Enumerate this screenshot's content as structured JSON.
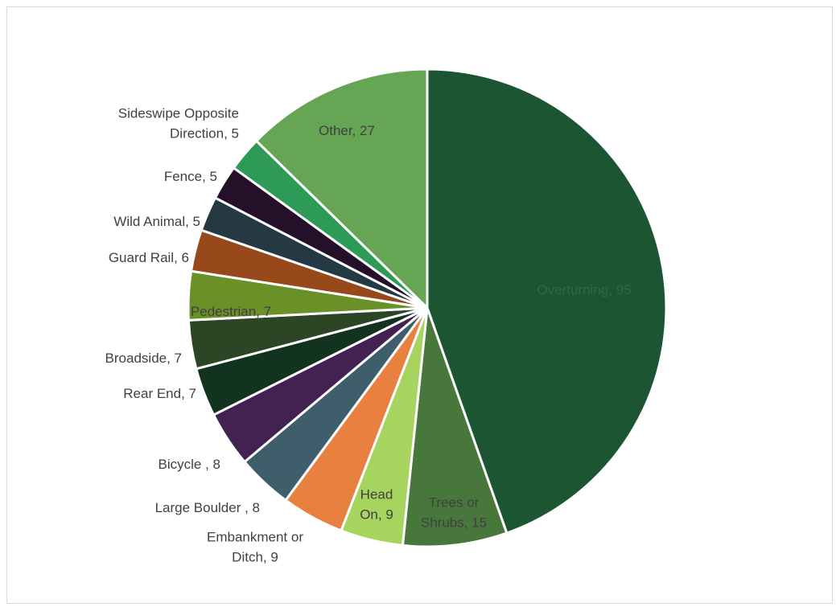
{
  "chart_data": {
    "type": "pie",
    "title": "",
    "series": [
      {
        "name": "",
        "slices": [
          {
            "label": "Overturning",
            "value": 95,
            "color": "#1b5532",
            "label_color": "#2c6b3f"
          },
          {
            "label": "Trees or Shrubs",
            "value": 15,
            "color": "#47773a",
            "label_color": "#404040"
          },
          {
            "label": "Head On",
            "value": 9,
            "color": "#a6d45e",
            "label_color": "#404040"
          },
          {
            "label": "Embankment or Ditch",
            "value": 9,
            "color": "#e8803f",
            "label_color": "#404040"
          },
          {
            "label": "Large Boulder",
            "value": 8,
            "color": "#3d5e6a",
            "label_color": "#404040"
          },
          {
            "label": "Bicycle",
            "value": 8,
            "color": "#432152",
            "label_color": "#404040"
          },
          {
            "label": "Rear End",
            "value": 7,
            "color": "#123320",
            "label_color": "#404040"
          },
          {
            "label": "Broadside",
            "value": 7,
            "color": "#2c4525",
            "label_color": "#404040"
          },
          {
            "label": "Pedestrian",
            "value": 7,
            "color": "#6a9127",
            "label_color": "#404040"
          },
          {
            "label": "Guard Rail",
            "value": 6,
            "color": "#98491c",
            "label_color": "#404040"
          },
          {
            "label": "Wild Animal",
            "value": 5,
            "color": "#253945",
            "label_color": "#404040"
          },
          {
            "label": "Fence",
            "value": 5,
            "color": "#241029",
            "label_color": "#404040"
          },
          {
            "label": "Sideswipe Opposite Direction",
            "value": 5,
            "color": "#2d9a58",
            "label_color": "#404040"
          },
          {
            "label": "Other",
            "value": 27,
            "color": "#65a554",
            "label_color": "#404040"
          }
        ]
      }
    ],
    "data_labels": [
      {
        "lines": [
          "Overturning, 95"
        ]
      },
      {
        "lines": [
          "Trees or",
          "Shrubs, 15"
        ]
      },
      {
        "lines": [
          "Head",
          "On, 9"
        ]
      },
      {
        "lines": [
          "Embankment or",
          "Ditch, 9"
        ]
      },
      {
        "lines": [
          "Large Boulder , 8"
        ]
      },
      {
        "lines": [
          "Bicycle , 8"
        ]
      },
      {
        "lines": [
          "Rear End, 7"
        ]
      },
      {
        "lines": [
          "Broadside, 7"
        ]
      },
      {
        "lines": [
          "Pedestrian, 7"
        ]
      },
      {
        "lines": [
          "Guard Rail, 6"
        ]
      },
      {
        "lines": [
          "Wild Animal, 5"
        ]
      },
      {
        "lines": [
          "Fence, 5"
        ]
      },
      {
        "lines": [
          "Sideswipe Opposite",
          "Direction, 5"
        ]
      },
      {
        "lines": [
          "Other, 27"
        ]
      }
    ],
    "start_angle_deg": 0,
    "direction": "clockwise",
    "slice_border_color": "#ffffff",
    "legend": "none"
  }
}
